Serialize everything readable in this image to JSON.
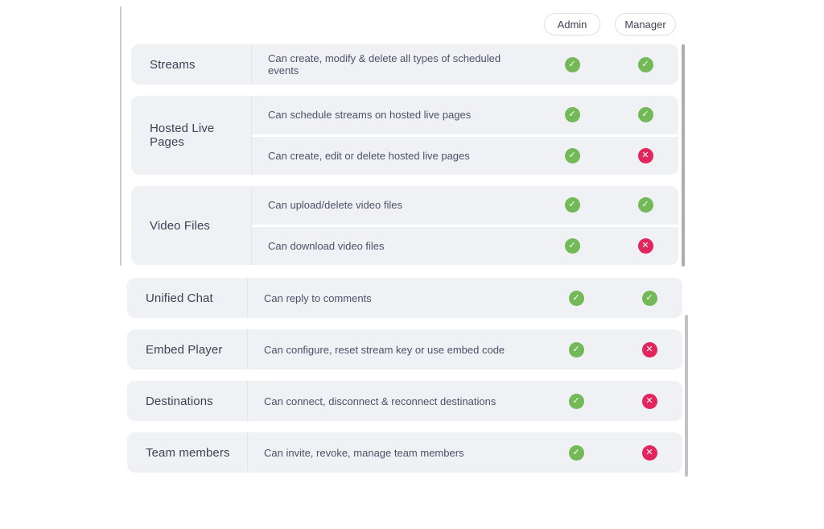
{
  "header": {
    "role_buttons": [
      {
        "label": "Admin"
      },
      {
        "label": "Manager"
      }
    ]
  },
  "icons": {
    "allowed_glyph": "✓",
    "denied_glyph": "✕"
  },
  "colors": {
    "allowed": "#74b957",
    "denied": "#e2255c",
    "card_background": "#f0f1f5",
    "text_primary": "#3f4254",
    "text_secondary": "#4c5268"
  },
  "permissions_table": {
    "columns": [
      "Admin",
      "Manager"
    ],
    "groups": [
      {
        "cards": [
          {
            "category": "Streams",
            "rows": [
              {
                "description": "Can create, modify & delete all types of scheduled events",
                "admin": "allowed",
                "manager": "allowed"
              }
            ]
          },
          {
            "category": "Hosted Live Pages",
            "rows": [
              {
                "description": "Can schedule streams on hosted live pages",
                "admin": "allowed",
                "manager": "allowed"
              },
              {
                "description": "Can create, edit or delete hosted live pages",
                "admin": "allowed",
                "manager": "denied"
              }
            ]
          },
          {
            "category": "Video Files",
            "rows": [
              {
                "description": "Can upload/delete video files",
                "admin": "allowed",
                "manager": "allowed"
              },
              {
                "description": "Can download video files",
                "admin": "allowed",
                "manager": "denied"
              }
            ]
          }
        ]
      },
      {
        "cards": [
          {
            "category": "Unified Chat",
            "rows": [
              {
                "description": "Can reply to comments",
                "admin": "allowed",
                "manager": "allowed"
              }
            ]
          },
          {
            "category": "Embed Player",
            "rows": [
              {
                "description": "Can configure, reset stream key or use embed code",
                "admin": "allowed",
                "manager": "denied"
              }
            ]
          },
          {
            "category": "Destinations",
            "rows": [
              {
                "description": "Can connect, disconnect & reconnect destinations",
                "admin": "allowed",
                "manager": "denied"
              }
            ]
          },
          {
            "category": "Team members",
            "rows": [
              {
                "description": "Can invite, revoke, manage team members",
                "admin": "allowed",
                "manager": "denied"
              }
            ]
          }
        ]
      }
    ]
  }
}
